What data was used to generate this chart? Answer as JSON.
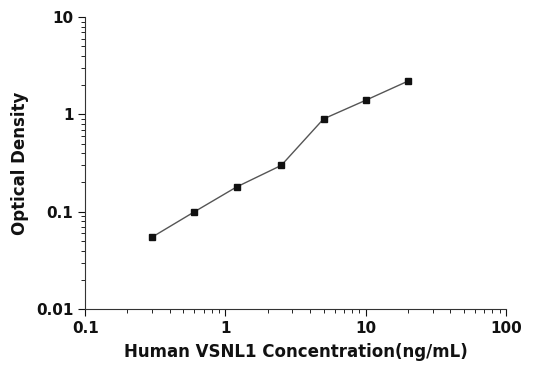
{
  "x": [
    0.3,
    0.6,
    1.2,
    2.5,
    5.0,
    10.0,
    20.0
  ],
  "y": [
    0.055,
    0.1,
    0.18,
    0.3,
    0.9,
    1.4,
    2.2
  ],
  "xlabel": "Human VSNL1 Concentration(ng/mL)",
  "ylabel": "Optical Density",
  "xlim": [
    0.1,
    100
  ],
  "ylim": [
    0.01,
    10
  ],
  "xticks": [
    0.1,
    1,
    10,
    100
  ],
  "yticks": [
    0.01,
    0.1,
    1,
    10
  ],
  "line_color": "#555555",
  "marker_color": "#111111",
  "marker": "s",
  "marker_size": 5,
  "line_width": 1.0,
  "background_color": "#ffffff",
  "xlabel_fontsize": 12,
  "ylabel_fontsize": 12,
  "tick_labelsize": 11
}
